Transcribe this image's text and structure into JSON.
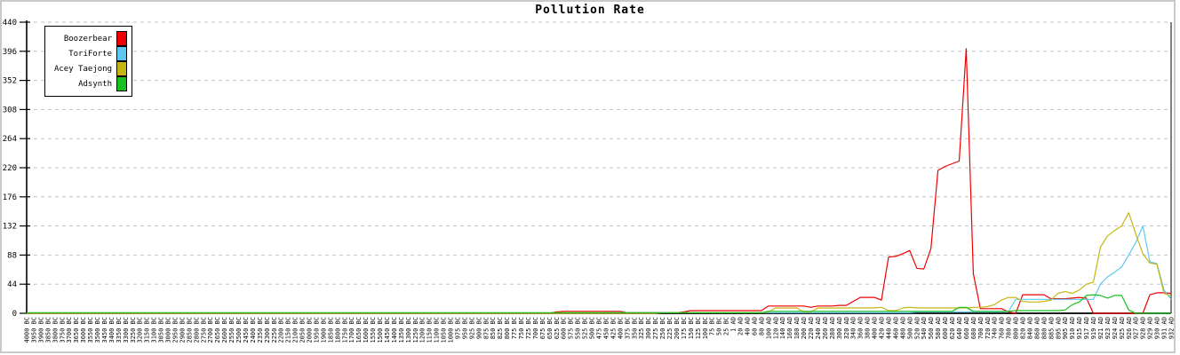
{
  "frame": {
    "background": "#ffffff",
    "border_color": "#c9c9c9"
  },
  "chart_data": {
    "type": "line",
    "title": "Pollution Rate",
    "xlabel": "",
    "ylabel": "",
    "ylim": [
      0,
      440
    ],
    "yticks": [
      0,
      44,
      88,
      132,
      176,
      220,
      264,
      308,
      352,
      396,
      440
    ],
    "grid": "horizontal-dashed",
    "grid_color": "#c3c3c3",
    "axis_color": "#000000",
    "legend_position": "top-left",
    "x_tick_labels": [
      "4000 BC",
      "3950 BC",
      "3900 BC",
      "3850 BC",
      "3800 BC",
      "3750 BC",
      "3700 BC",
      "3650 BC",
      "3600 BC",
      "3550 BC",
      "3500 BC",
      "3450 BC",
      "3400 BC",
      "3350 BC",
      "3300 BC",
      "3250 BC",
      "3200 BC",
      "3150 BC",
      "3100 BC",
      "3050 BC",
      "3000 BC",
      "2950 BC",
      "2900 BC",
      "2850 BC",
      "2800 BC",
      "2750 BC",
      "2700 BC",
      "2650 BC",
      "2600 BC",
      "2550 BC",
      "2500 BC",
      "2450 BC",
      "2400 BC",
      "2350 BC",
      "2300 BC",
      "2250 BC",
      "2200 BC",
      "2150 BC",
      "2100 BC",
      "2050 BC",
      "2000 BC",
      "1950 BC",
      "1900 BC",
      "1850 BC",
      "1800 BC",
      "1750 BC",
      "1700 BC",
      "1650 BC",
      "1600 BC",
      "1550 BC",
      "1500 BC",
      "1450 BC",
      "1400 BC",
      "1350 BC",
      "1300 BC",
      "1250 BC",
      "1200 BC",
      "1150 BC",
      "1100 BC",
      "1050 BC",
      "1000 BC",
      "975 BC",
      "950 BC",
      "925 BC",
      "900 BC",
      "875 BC",
      "850 BC",
      "825 BC",
      "800 BC",
      "775 BC",
      "750 BC",
      "725 BC",
      "700 BC",
      "675 BC",
      "650 BC",
      "625 BC",
      "600 BC",
      "575 BC",
      "550 BC",
      "525 BC",
      "500 BC",
      "475 BC",
      "450 BC",
      "425 BC",
      "400 BC",
      "375 BC",
      "350 BC",
      "325 BC",
      "300 BC",
      "275 BC",
      "250 BC",
      "225 BC",
      "200 BC",
      "175 BC",
      "150 BC",
      "125 BC",
      "100 BC",
      "75 BC",
      "50 BC",
      "25 BC",
      "1 AD",
      "20 AD",
      "40 AD",
      "60 AD",
      "80 AD",
      "100 AD",
      "120 AD",
      "140 AD",
      "160 AD",
      "180 AD",
      "200 AD",
      "220 AD",
      "240 AD",
      "260 AD",
      "280 AD",
      "300 AD",
      "320 AD",
      "340 AD",
      "360 AD",
      "380 AD",
      "400 AD",
      "420 AD",
      "440 AD",
      "460 AD",
      "480 AD",
      "500 AD",
      "520 AD",
      "540 AD",
      "560 AD",
      "580 AD",
      "600 AD",
      "620 AD",
      "640 AD",
      "660 AD",
      "680 AD",
      "700 AD",
      "720 AD",
      "740 AD",
      "760 AD",
      "780 AD",
      "800 AD",
      "820 AD",
      "840 AD",
      "860 AD",
      "880 AD",
      "885 AD",
      "895 AD",
      "905 AD",
      "910 AD",
      "915 AD",
      "917 AD",
      "919 AD",
      "921 AD",
      "923 AD",
      "924 AD",
      "925 AD",
      "926 AD",
      "927 AD",
      "928 AD",
      "929 AD",
      "930 AD",
      "931 AD",
      "932 AD"
    ],
    "series": [
      {
        "name": "Boozerbear",
        "color": "#ee0000",
        "values": [
          0,
          0,
          0,
          0,
          0,
          0,
          0,
          0,
          0,
          0,
          0,
          0,
          0,
          0,
          0,
          0,
          0,
          0,
          0,
          0,
          0,
          0,
          0,
          0,
          0,
          0,
          0,
          0,
          0,
          0,
          0,
          0,
          0,
          0,
          0,
          0,
          0,
          0,
          0,
          0,
          0,
          0,
          0,
          0,
          0,
          0,
          0,
          0,
          0,
          0,
          0,
          0,
          0,
          0,
          0,
          0,
          0,
          0,
          0,
          0,
          0,
          0,
          0,
          0,
          0,
          0,
          0,
          0,
          0,
          0,
          0,
          0,
          0,
          0,
          0,
          2,
          3,
          3,
          3,
          3,
          3,
          3,
          3,
          3,
          3,
          1,
          1,
          1,
          1,
          1,
          1,
          1,
          1,
          2,
          4,
          4,
          4,
          4,
          4,
          4,
          4,
          4,
          4,
          4,
          4,
          11,
          11,
          11,
          11,
          11,
          11,
          9,
          11,
          11,
          11,
          12,
          12,
          18,
          24,
          24,
          24,
          20,
          85,
          86,
          90,
          95,
          68,
          67,
          98,
          216,
          222,
          226,
          230,
          400,
          60,
          7,
          7,
          7,
          7,
          2,
          0,
          28,
          28,
          28,
          28,
          22,
          22,
          22,
          23,
          24,
          23,
          0,
          0,
          0,
          0,
          0,
          0,
          0,
          0,
          28,
          31,
          31,
          30
        ]
      },
      {
        "name": "ToriForte",
        "color": "#5ec8f2",
        "values": [
          0,
          0,
          0,
          0,
          0,
          0,
          0,
          0,
          0,
          0,
          0,
          0,
          0,
          0,
          0,
          0,
          0,
          0,
          0,
          0,
          0,
          0,
          0,
          0,
          0,
          0,
          0,
          0,
          0,
          0,
          0,
          0,
          0,
          0,
          0,
          0,
          0,
          0,
          0,
          0,
          0,
          0,
          0,
          0,
          0,
          0,
          0,
          0,
          0,
          0,
          0,
          0,
          0,
          0,
          0,
          0,
          0,
          0,
          0,
          0,
          0,
          0,
          0,
          0,
          0,
          0,
          0,
          0,
          0,
          0,
          0,
          0,
          0,
          0,
          0,
          0,
          0,
          0,
          0,
          0,
          0,
          0,
          1,
          1,
          1,
          1,
          1,
          1,
          1,
          1,
          1,
          1,
          1,
          1,
          1,
          1,
          1,
          1,
          1,
          1,
          1,
          1,
          1,
          1,
          1,
          1,
          1,
          1,
          1,
          1,
          1,
          1,
          1,
          1,
          1,
          1,
          1,
          1,
          1,
          1,
          1,
          1,
          1,
          1,
          1,
          1,
          2,
          2,
          2,
          2,
          2,
          2,
          2,
          2,
          2,
          2,
          2,
          2,
          2,
          3,
          21,
          21,
          21,
          21,
          21,
          21,
          21,
          21,
          21,
          21,
          21,
          21,
          44,
          55,
          62,
          70,
          88,
          107,
          132,
          78,
          75,
          35,
          21
        ]
      },
      {
        "name": "Acey Taejong",
        "color": "#c6b510",
        "values": [
          0,
          0,
          0,
          0,
          0,
          0,
          0,
          0,
          0,
          0,
          0,
          0,
          0,
          0,
          0,
          0,
          0,
          0,
          0,
          0,
          0,
          0,
          0,
          0,
          0,
          0,
          0,
          0,
          0,
          0,
          0,
          0,
          0,
          0,
          0,
          0,
          0,
          0,
          0,
          0,
          0,
          0,
          0,
          0,
          0,
          0,
          0,
          0,
          0,
          0,
          0,
          0,
          0,
          0,
          0,
          0,
          0,
          0,
          0,
          0,
          0,
          0,
          0,
          0,
          0,
          0,
          0,
          0,
          0,
          0,
          0,
          0,
          0,
          0,
          0,
          0,
          0,
          0,
          0,
          0,
          0,
          0,
          0,
          0,
          0,
          0,
          0,
          0,
          0,
          0,
          1,
          1,
          1,
          1,
          1,
          1,
          1,
          1,
          1,
          1,
          1,
          1,
          1,
          1,
          1,
          2,
          8,
          8,
          8,
          8,
          2,
          2,
          8,
          8,
          8,
          8,
          8,
          8,
          8,
          8,
          8,
          9,
          4,
          4,
          8,
          9,
          8,
          8,
          8,
          8,
          8,
          8,
          8,
          8,
          9,
          9,
          10,
          13,
          20,
          24,
          24,
          18,
          17,
          17,
          18,
          20,
          30,
          33,
          30,
          35,
          44,
          47,
          100,
          117,
          125,
          132,
          152,
          120,
          90,
          76,
          74,
          30,
          26
        ]
      },
      {
        "name": "Adsynth",
        "color": "#16c020",
        "values": [
          1,
          1,
          1,
          1,
          1,
          1,
          1,
          1,
          1,
          1,
          1,
          1,
          1,
          1,
          1,
          1,
          1,
          1,
          1,
          1,
          1,
          1,
          1,
          1,
          1,
          1,
          1,
          1,
          1,
          1,
          1,
          1,
          1,
          1,
          1,
          1,
          1,
          1,
          1,
          1,
          1,
          1,
          1,
          1,
          1,
          1,
          1,
          1,
          1,
          1,
          1,
          1,
          1,
          1,
          1,
          1,
          1,
          1,
          1,
          1,
          1,
          1,
          1,
          1,
          1,
          1,
          1,
          1,
          1,
          1,
          1,
          1,
          1,
          1,
          1,
          1,
          1,
          1,
          1,
          1,
          1,
          1,
          1,
          1,
          1,
          1,
          1,
          1,
          1,
          1,
          1,
          1,
          1,
          1,
          1,
          1,
          1,
          1,
          1,
          1,
          1,
          1,
          1,
          1,
          1,
          3,
          3,
          3,
          3,
          3,
          3,
          3,
          3,
          3,
          3,
          3,
          3,
          3,
          3,
          3,
          3,
          3,
          3,
          3,
          3,
          3,
          3,
          3,
          3,
          3,
          3,
          3,
          9,
          9,
          3,
          3,
          3,
          3,
          3,
          3,
          4,
          4,
          4,
          4,
          4,
          4,
          4,
          5,
          13,
          17,
          27,
          28,
          27,
          23,
          27,
          27,
          5,
          0,
          0,
          0,
          0,
          0,
          0
        ]
      }
    ]
  }
}
